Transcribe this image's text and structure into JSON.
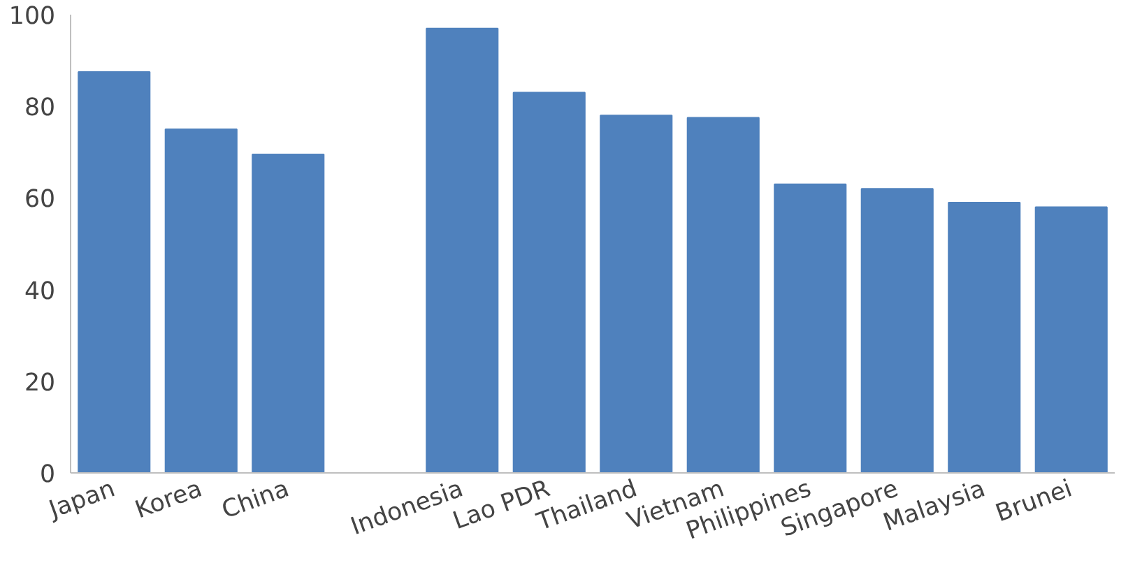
{
  "chart_data": {
    "type": "bar",
    "categories": [
      "Japan",
      "Korea",
      "China",
      null,
      "Indonesia",
      "Lao PDR",
      "Thailand",
      "Vietnam",
      "Philippines",
      "Singapore",
      "Malaysia",
      "Brunei"
    ],
    "values": [
      87.5,
      75,
      69.5,
      null,
      97,
      83,
      78,
      77.5,
      63,
      62,
      59,
      58
    ],
    "color": "#4f81bd",
    "ylim": [
      0,
      100
    ],
    "yticks": [
      0,
      20,
      40,
      60,
      80,
      100
    ],
    "grid": false
  }
}
